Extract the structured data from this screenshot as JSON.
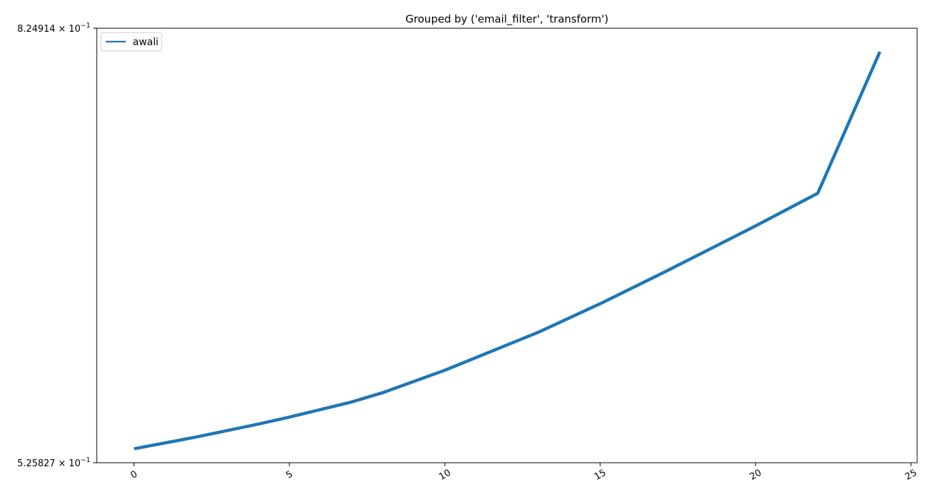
{
  "chart_data": {
    "type": "line",
    "title": "Grouped by ('email_filter', 'transform')",
    "xlabel": "",
    "ylabel": "",
    "x_ticks": [
      0,
      5,
      10,
      15,
      20,
      25
    ],
    "x_tick_labels": [
      "0",
      "5",
      "10",
      "15",
      "20",
      "25"
    ],
    "xlim": [
      -1.2,
      25.2
    ],
    "ylim": [
      0.525827,
      0.824914
    ],
    "yscale": "log",
    "y_tick_labels": [
      {
        "value": 0.824914,
        "mantissa": "8.24914",
        "base": "10",
        "exponent": "−1"
      },
      {
        "value": 0.525827,
        "mantissa": "5.25827",
        "base": "10",
        "exponent": "−1"
      }
    ],
    "grid": false,
    "legend_position": "upper-left",
    "series": [
      {
        "name": "awali",
        "color": "#1f77b4",
        "x": [
          0,
          2,
          4,
          5,
          7,
          8,
          10,
          13,
          15,
          17,
          20,
          22,
          24
        ],
        "y": [
          0.5335,
          0.54,
          0.5473,
          0.5513,
          0.56,
          0.5654,
          0.5787,
          0.6019,
          0.62,
          0.64,
          0.6721,
          0.6952,
          0.805
        ]
      }
    ]
  }
}
